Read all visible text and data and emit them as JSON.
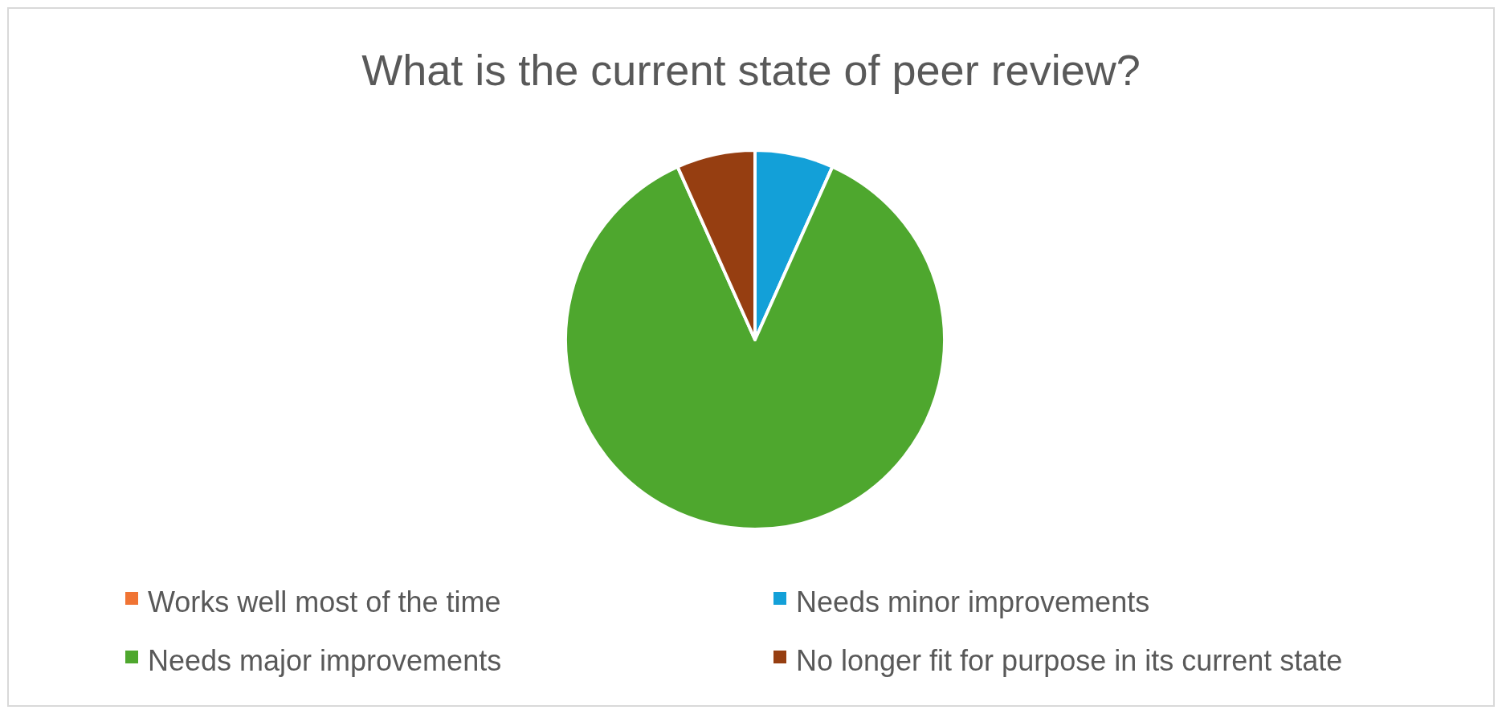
{
  "chart_data": {
    "type": "pie",
    "title": "What is the current state of peer review?",
    "categories": [
      "Works well most of the time",
      "Needs minor improvements",
      "Needs major improvements",
      "No longer fit for purpose in its current state"
    ],
    "values": [
      0,
      6.7,
      86.6,
      6.7
    ],
    "colors": [
      "#f07434",
      "#13a0d8",
      "#4ea72e",
      "#963e11"
    ],
    "legend": "bottom"
  }
}
